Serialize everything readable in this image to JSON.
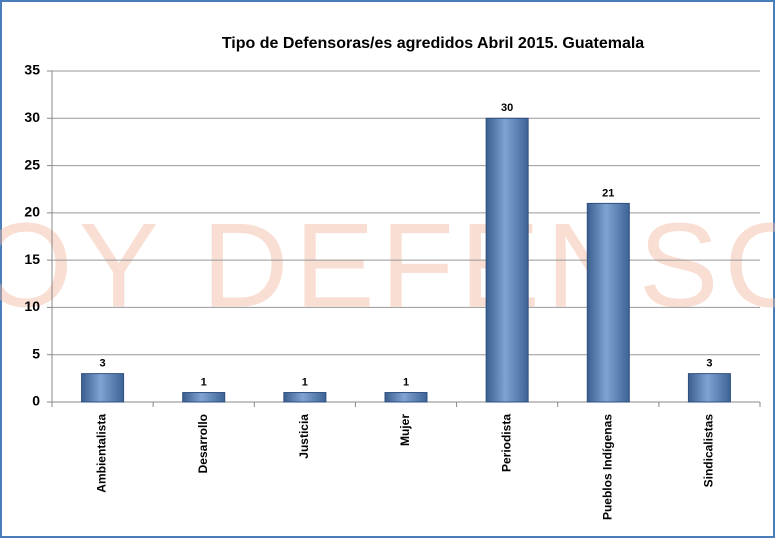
{
  "chart_data": {
    "type": "bar",
    "title": "Tipo de Defensoras/es agredidos Abril 2015. Guatemala",
    "watermark": "SOY DEFENSOR",
    "categories": [
      "Ambientalista",
      "Desarrollo",
      "Justicia",
      "Mujer",
      "Periodista",
      "Pueblos Indígenas",
      "Sindicalistas"
    ],
    "values": [
      3,
      1,
      1,
      1,
      30,
      21,
      3
    ],
    "color": "#4f81bd",
    "ylim": [
      0,
      35
    ],
    "yticks": [
      0,
      5,
      10,
      15,
      20,
      25,
      30,
      35
    ],
    "grid": true
  }
}
